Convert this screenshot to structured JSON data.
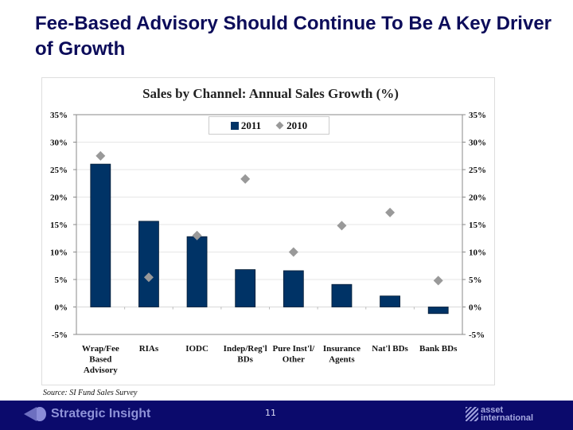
{
  "slide": {
    "title": "Fee-Based Advisory Should Continue To Be A Key Driver of Growth",
    "source": "Source: SI Fund Sales Survey",
    "page_number": "11"
  },
  "footer": {
    "left_logo_text": "Strategic Insight",
    "right_logo_line1": "asset",
    "right_logo_line2": "international"
  },
  "colors": {
    "title": "#0c0c5a",
    "bar_2011": "#003366",
    "marker_2010": "#999999",
    "footer_bg": "#0b0a6c"
  },
  "chart_data": {
    "type": "bar",
    "title": "Sales by Channel: Annual Sales Growth (%)",
    "xlabel": "",
    "ylabel": "",
    "categories": [
      [
        "Wrap/Fee",
        "Based",
        "Advisory"
      ],
      [
        "RIAs"
      ],
      [
        "IODC"
      ],
      [
        "Indep/Reg'l",
        "BDs"
      ],
      [
        "Pure Inst'l/",
        "Other"
      ],
      [
        "Insurance",
        "Agents"
      ],
      [
        "Nat'l BDs"
      ],
      [
        "Bank BDs"
      ]
    ],
    "series": [
      {
        "name": "2011",
        "kind": "bar",
        "values": [
          26.0,
          15.6,
          12.8,
          6.8,
          6.6,
          4.1,
          2.0,
          -1.2
        ]
      },
      {
        "name": "2010",
        "kind": "marker-diamond",
        "values": [
          27.5,
          5.4,
          13.0,
          23.3,
          10.0,
          14.8,
          17.2,
          4.8
        ]
      }
    ],
    "ylim": [
      -5,
      35
    ],
    "yticks": [
      35,
      30,
      25,
      20,
      15,
      10,
      5,
      0,
      -5
    ],
    "ytick_labels": [
      "35%",
      "30%",
      "25%",
      "20%",
      "15%",
      "10%",
      "5%",
      "0%",
      "-5%"
    ],
    "secondary_y_axis": true,
    "grid": true,
    "legend": {
      "position": "top-center",
      "entries": [
        "2011",
        "2010"
      ]
    }
  }
}
